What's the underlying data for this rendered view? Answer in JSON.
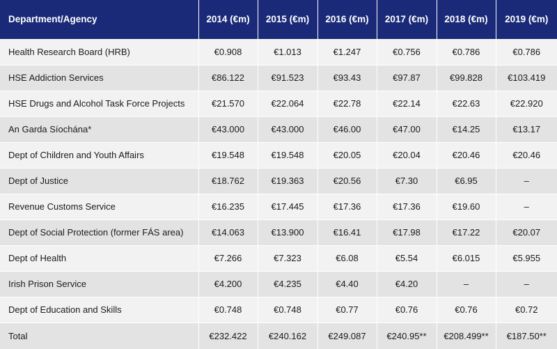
{
  "table": {
    "headers": [
      "Department/Agency",
      "2014 (€m)",
      "2015 (€m)",
      "2016 (€m)",
      "2017 (€m)",
      "2018 (€m)",
      "2019 (€m)"
    ],
    "rows": [
      [
        "Health Research Board (HRB)",
        "€0.908",
        "€1.013",
        "€1.247",
        "€0.756",
        "€0.786",
        "€0.786"
      ],
      [
        "HSE Addiction Services",
        "€86.122",
        "€91.523",
        "€93.43",
        "€97.87",
        "€99.828",
        "€103.419"
      ],
      [
        "HSE Drugs and Alcohol Task Force Projects",
        "€21.570",
        "€22.064",
        "€22.78",
        "€22.14",
        "€22.63",
        "€22.920"
      ],
      [
        "An Garda Síochána*",
        "€43.000",
        "€43.000",
        "€46.00",
        "€47.00",
        "€14.25",
        "€13.17"
      ],
      [
        "Dept of Children and Youth Affairs",
        "€19.548",
        "€19.548",
        "€20.05",
        "€20.04",
        "€20.46",
        "€20.46"
      ],
      [
        "Dept of Justice",
        "€18.762",
        "€19.363",
        "€20.56",
        "€7.30",
        "€6.95",
        "–"
      ],
      [
        "Revenue Customs Service",
        "€16.235",
        "€17.445",
        "€17.36",
        "€17.36",
        "€19.60",
        "–"
      ],
      [
        "Dept of Social Protection (former FÁS area)",
        "€14.063",
        "€13.900",
        "€16.41",
        "€17.98",
        "€17.22",
        "€20.07"
      ],
      [
        "Dept of Health",
        "€7.266",
        "€7.323",
        "€6.08",
        "€5.54",
        "€6.015",
        "€5.955"
      ],
      [
        "Irish Prison Service",
        "€4.200",
        "€4.235",
        "€4.40",
        "€4.20",
        "–",
        "–"
      ],
      [
        "Dept of Education and Skills",
        "€0.748",
        "€0.748",
        "€0.77",
        "€0.76",
        "€0.76",
        "€0.72"
      ],
      [
        "Total",
        "€232.422",
        "€240.162",
        "€249.087",
        "€240.95**",
        "€208.499**",
        "€187.50**"
      ]
    ]
  },
  "colors": {
    "header_bg": "#1a2a78",
    "header_text": "#ffffff",
    "row_light": "#f2f2f2",
    "row_dark": "#e3e3e3"
  }
}
